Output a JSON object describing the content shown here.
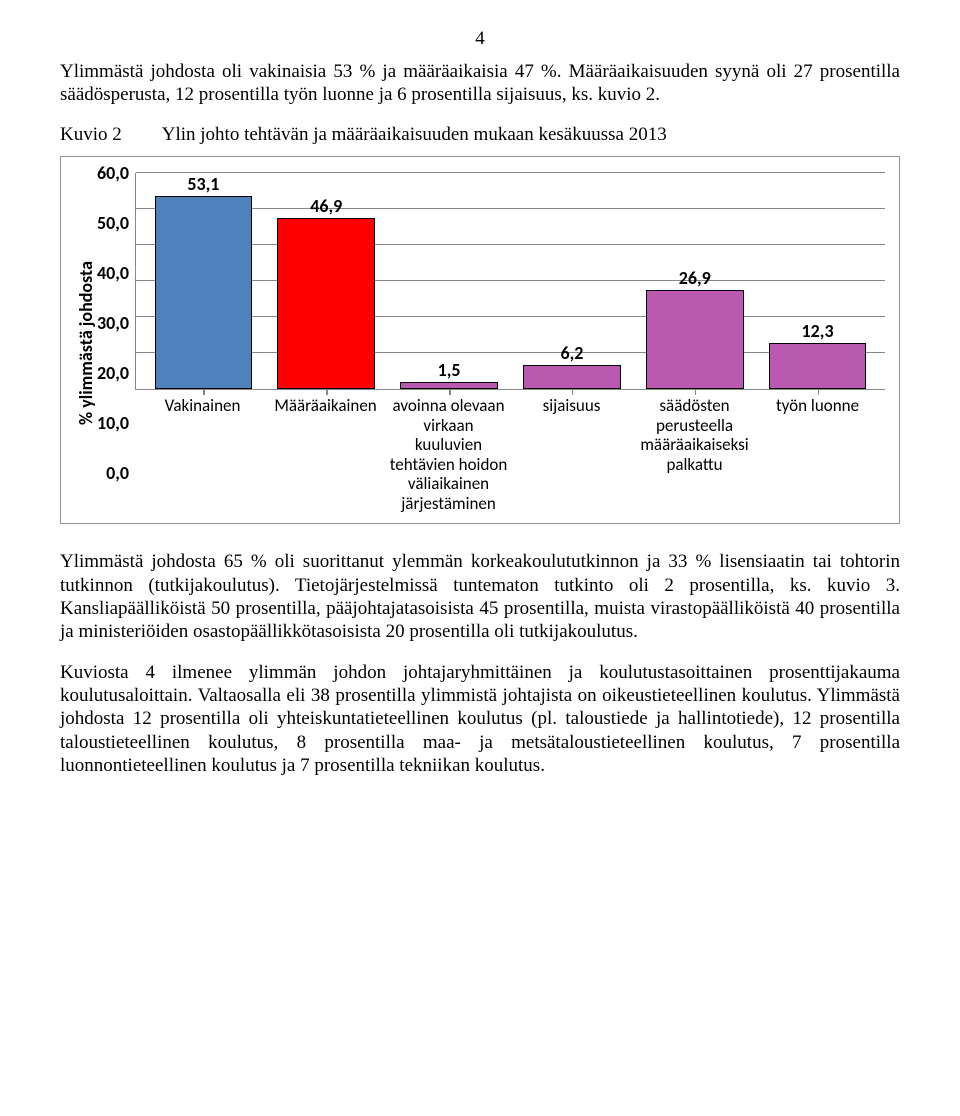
{
  "page_number": "4",
  "p1": "Ylimmästä johdosta oli vakinaisia 53 % ja määräaikaisia 47 %. Määräaikaisuuden syynä oli 27 prosentilla säädösperusta, 12 prosentilla työn luonne ja 6 prosentilla sijaisuus, ks. kuvio 2.",
  "caption": {
    "label": "Kuvio 2",
    "text": "Ylin johto tehtävän ja määräaikaisuuden mukaan kesäkuussa 2013"
  },
  "chart": {
    "type": "bar",
    "y_axis_label": "% ylimmästä johdosta",
    "y_max": 60,
    "y_step": 10,
    "grid_color": "#878787",
    "background_color": "#ffffff",
    "label_font": "bold 18px Calibri",
    "bars": [
      {
        "label": "Vakinainen",
        "value": 53.1,
        "display": "53,1",
        "fill": "#4f81bd",
        "stroke": "#000000"
      },
      {
        "label": "Määräaikainen",
        "value": 46.9,
        "display": "46,9",
        "fill": "#ff0000",
        "stroke": "#000000"
      },
      {
        "label": "avoinna olevaan virkaan kuuluvien tehtävien hoidon väliaikainen järjestäminen",
        "value": 1.5,
        "display": "1,5",
        "fill": "#b95ab0",
        "stroke": "#000000"
      },
      {
        "label": "sijaisuus",
        "value": 6.2,
        "display": "6,2",
        "fill": "#b95ab0",
        "stroke": "#000000"
      },
      {
        "label": "säädösten perusteella määräaikaiseksi palkattu",
        "value": 26.9,
        "display": "26,9",
        "fill": "#b95ab0",
        "stroke": "#000000"
      },
      {
        "label": "työn luonne",
        "value": 12.3,
        "display": "12,3",
        "fill": "#b95ab0",
        "stroke": "#000000"
      }
    ]
  },
  "p2": "Ylimmästä johdosta 65 % oli suorittanut ylemmän korkeakoulututkinnon ja 33 % lisensiaatin tai tohtorin tutkinnon (tutkijakoulutus). Tietojärjestelmissä tuntematon tutkinto oli 2 prosentilla, ks. kuvio 3. Kansliapäälliköistä 50 prosentilla, pääjohtajatasoisista 45 prosentilla, muista virastopäälliköistä 40 prosentilla ja ministeriöiden osastopäällikkötasoisista 20 prosentilla oli tutkijakoulutus.",
  "p3": "Kuviosta 4 ilmenee ylimmän johdon johtajaryhmittäinen ja koulutustasoittainen prosenttijakauma koulutusaloittain. Valtaosalla eli 38 prosentilla ylimmistä johtajista on oikeustieteellinen koulutus. Ylimmästä johdosta 12 prosentilla oli yhteiskuntatieteellinen koulutus (pl. taloustiede ja hallintotiede), 12 prosentilla taloustieteellinen koulutus, 8 prosentilla maa- ja metsätaloustieteellinen koulutus, 7 prosentilla luonnontieteellinen koulutus ja 7 prosentilla tekniikan koulutus."
}
